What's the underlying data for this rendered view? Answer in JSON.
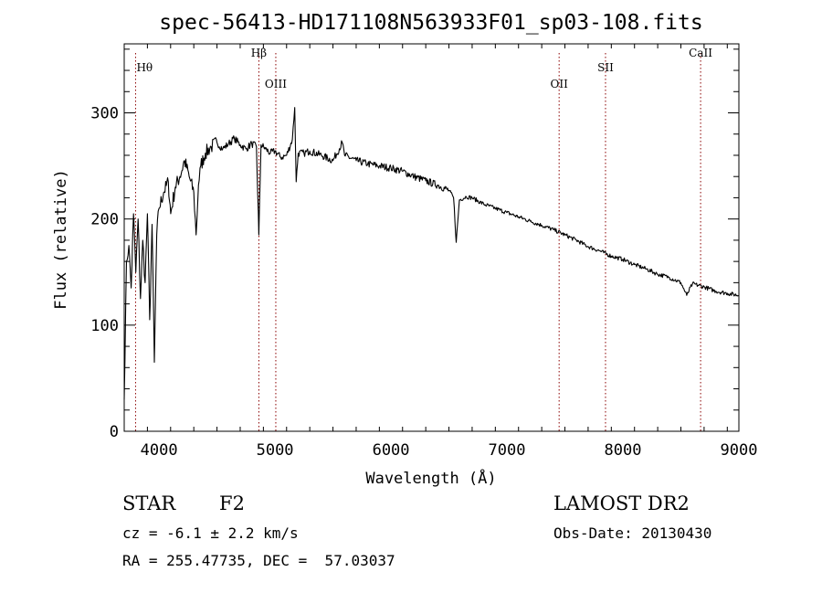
{
  "chart_data": {
    "type": "line",
    "title": "spec-56413-HD171108N563933F01_sp03-108.fits",
    "xlabel": "Wavelength (Å)",
    "ylabel": "Flux (relative)",
    "xlim": [
      3700,
      9000
    ],
    "ylim": [
      0,
      365
    ],
    "xticks": [
      4000,
      5000,
      6000,
      7000,
      8000,
      9000
    ],
    "yticks": [
      0,
      100,
      200,
      300
    ],
    "grid": false,
    "line_color": "#000000",
    "marker_color": "#8b0000",
    "series": [
      {
        "x": [
          3700,
          3720,
          3740,
          3760,
          3780,
          3800,
          3820,
          3840,
          3860,
          3880,
          3900,
          3920,
          3940,
          3960,
          3980,
          4000,
          4040,
          4080,
          4101,
          4140,
          4180,
          4220,
          4260,
          4300,
          4320,
          4340,
          4360,
          4400,
          4450,
          4500,
          4550,
          4600,
          4650,
          4700,
          4750,
          4800,
          4840,
          4861,
          4880,
          4920,
          4960,
          5000,
          5050,
          5100,
          5150,
          5170,
          5183,
          5200,
          5250,
          5300,
          5400,
          5500,
          5580,
          5600,
          5700,
          5800,
          5900,
          6000,
          6100,
          6200,
          6300,
          6400,
          6500,
          6540,
          6563,
          6590,
          6650,
          6700,
          6800,
          6900,
          7000,
          7100,
          7200,
          7300,
          7400,
          7500,
          7600,
          7700,
          7800,
          7900,
          8000,
          8100,
          8200,
          8300,
          8400,
          8500,
          8550,
          8600,
          8700,
          8800,
          8900,
          9000
        ],
        "values": [
          30,
          160,
          175,
          135,
          205,
          150,
          200,
          125,
          180,
          140,
          205,
          105,
          195,
          65,
          185,
          210,
          225,
          235,
          205,
          230,
          240,
          255,
          240,
          225,
          185,
          232,
          250,
          262,
          268,
          272,
          266,
          271,
          276,
          270,
          266,
          271,
          268,
          185,
          270,
          266,
          262,
          264,
          258,
          260,
          275,
          305,
          235,
          262,
          262,
          264,
          260,
          255,
          272,
          260,
          255,
          252,
          250,
          248,
          245,
          240,
          236,
          232,
          227,
          220,
          178,
          218,
          221,
          220,
          214,
          210,
          206,
          202,
          198,
          194,
          190,
          185,
          180,
          174,
          170,
          165,
          162,
          157,
          153,
          148,
          145,
          140,
          128,
          139,
          136,
          132,
          130,
          128
        ]
      }
    ],
    "lines": [
      {
        "label": "Hθ",
        "x": 3798
      },
      {
        "label": "Hβ",
        "x": 4861
      },
      {
        "label": "OIII",
        "x": 5007
      },
      {
        "label": "OII",
        "x": 7450
      },
      {
        "label": "SII",
        "x": 7850
      },
      {
        "label": "CaII",
        "x": 8670
      }
    ]
  },
  "footer": {
    "class_label": "STAR",
    "subclass": "F2",
    "survey": "LAMOST DR2",
    "cz": "cz = -6.1 ± 2.2 km/s",
    "obs_date": "Obs-Date: 20130430",
    "coords": "RA = 255.47735, DEC =  57.03037"
  }
}
